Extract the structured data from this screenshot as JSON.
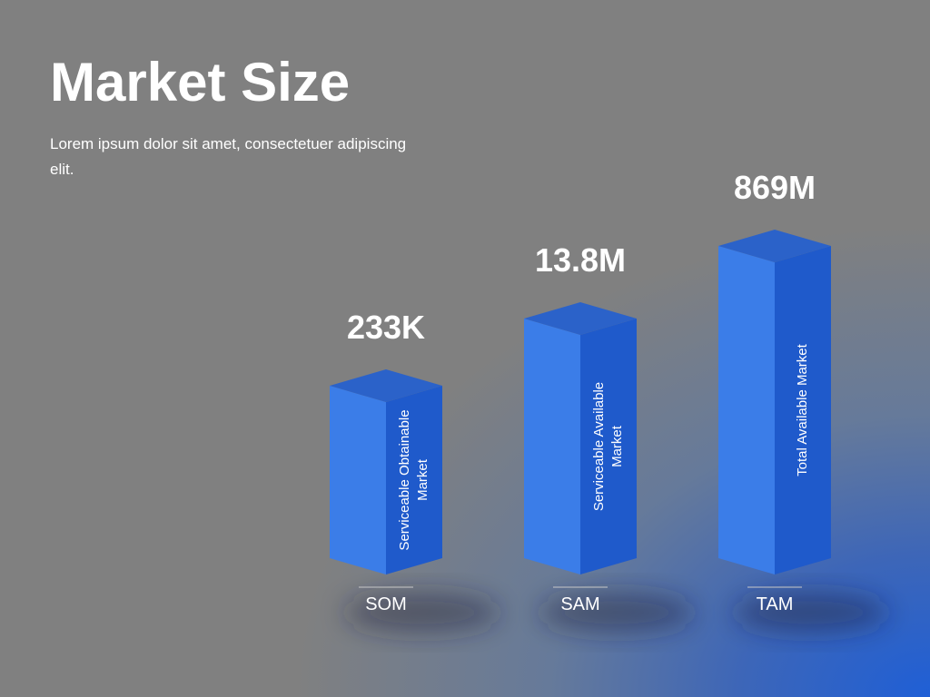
{
  "header": {
    "title": "Market Size",
    "subtitle": "Lorem ipsum dolor sit amet, consectetuer adipiscing elit."
  },
  "items": [
    {
      "label": "SOM",
      "value": "233K",
      "description": "Serviceable Obtainable Market"
    },
    {
      "label": "SAM",
      "value": "13.8M",
      "description": "Serviceable Available Market"
    },
    {
      "label": "TAM",
      "value": "869M",
      "description": "Total Available Market"
    }
  ]
}
